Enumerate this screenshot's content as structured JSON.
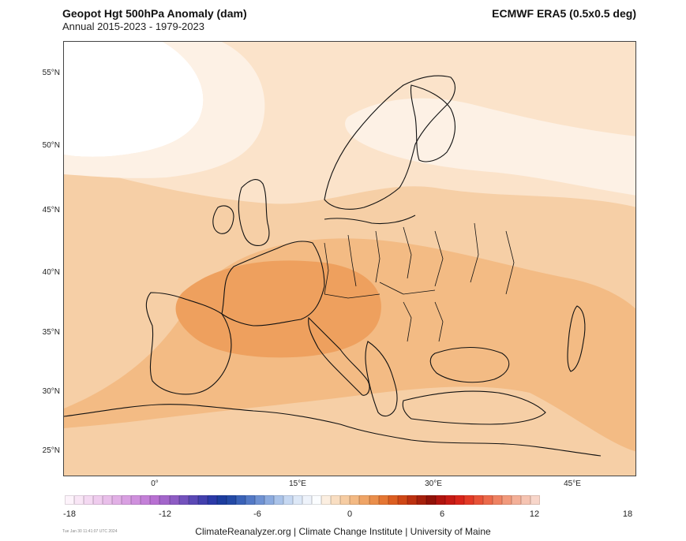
{
  "header": {
    "title": "Geopot Hgt 500hPa Anomaly (dam)",
    "subtitle": "Annual 2015-2023 - 1979-2023",
    "dataset": "ECMWF ERA5 (0.5x0.5 deg)"
  },
  "map": {
    "lat_labels": [
      "55°N",
      "50°N",
      "45°N",
      "40°N",
      "35°N",
      "30°N",
      "25°N"
    ],
    "lon_labels": [
      "0°",
      "15°E",
      "30°E",
      "45°E"
    ],
    "colors": {
      "lightest": "#fdf1e5",
      "light": "#fbe3ca",
      "base": "#f6cfa6",
      "medium": "#f3bb84",
      "strong": "#eea05e",
      "coast": "#111111"
    }
  },
  "colorbar": {
    "ticks": [
      "-18",
      "-12",
      "-6",
      "0",
      "6",
      "12",
      "18"
    ],
    "colors": [
      "#fdf3fb",
      "#f9e6f6",
      "#f4d9f2",
      "#efccee",
      "#e9bfea",
      "#e2b0e6",
      "#d9a0e2",
      "#cf90dd",
      "#c480d8",
      "#b870d2",
      "#a366cb",
      "#8e5cc4",
      "#7452bd",
      "#5b49b6",
      "#4340ae",
      "#2c3aa8",
      "#1d3d9f",
      "#244aa6",
      "#3a62b8",
      "#5379c6",
      "#6f92d3",
      "#8cabdf",
      "#aac3e9",
      "#c6d8f2",
      "#dde8f7",
      "#eef3fb",
      "#fbfdff",
      "#fcefe1",
      "#f9dec2",
      "#f6cca2",
      "#f3b983",
      "#efa466",
      "#ea8e4b",
      "#e57633",
      "#dc5e21",
      "#cf4716",
      "#bc3110",
      "#a6200c",
      "#911208",
      "#b1140e",
      "#c61a14",
      "#d8241a",
      "#e33a26",
      "#e85237",
      "#ec6a4b",
      "#ef8262",
      "#f29a7c",
      "#f4b098",
      "#f6c4b2",
      "#f8d6ca"
    ]
  },
  "footer": {
    "credit": "ClimateReanalyzer.org | Climate Change Institute | University of Maine",
    "timestamp": "Tue Jan 30 11:41:07 UTC 2024"
  }
}
